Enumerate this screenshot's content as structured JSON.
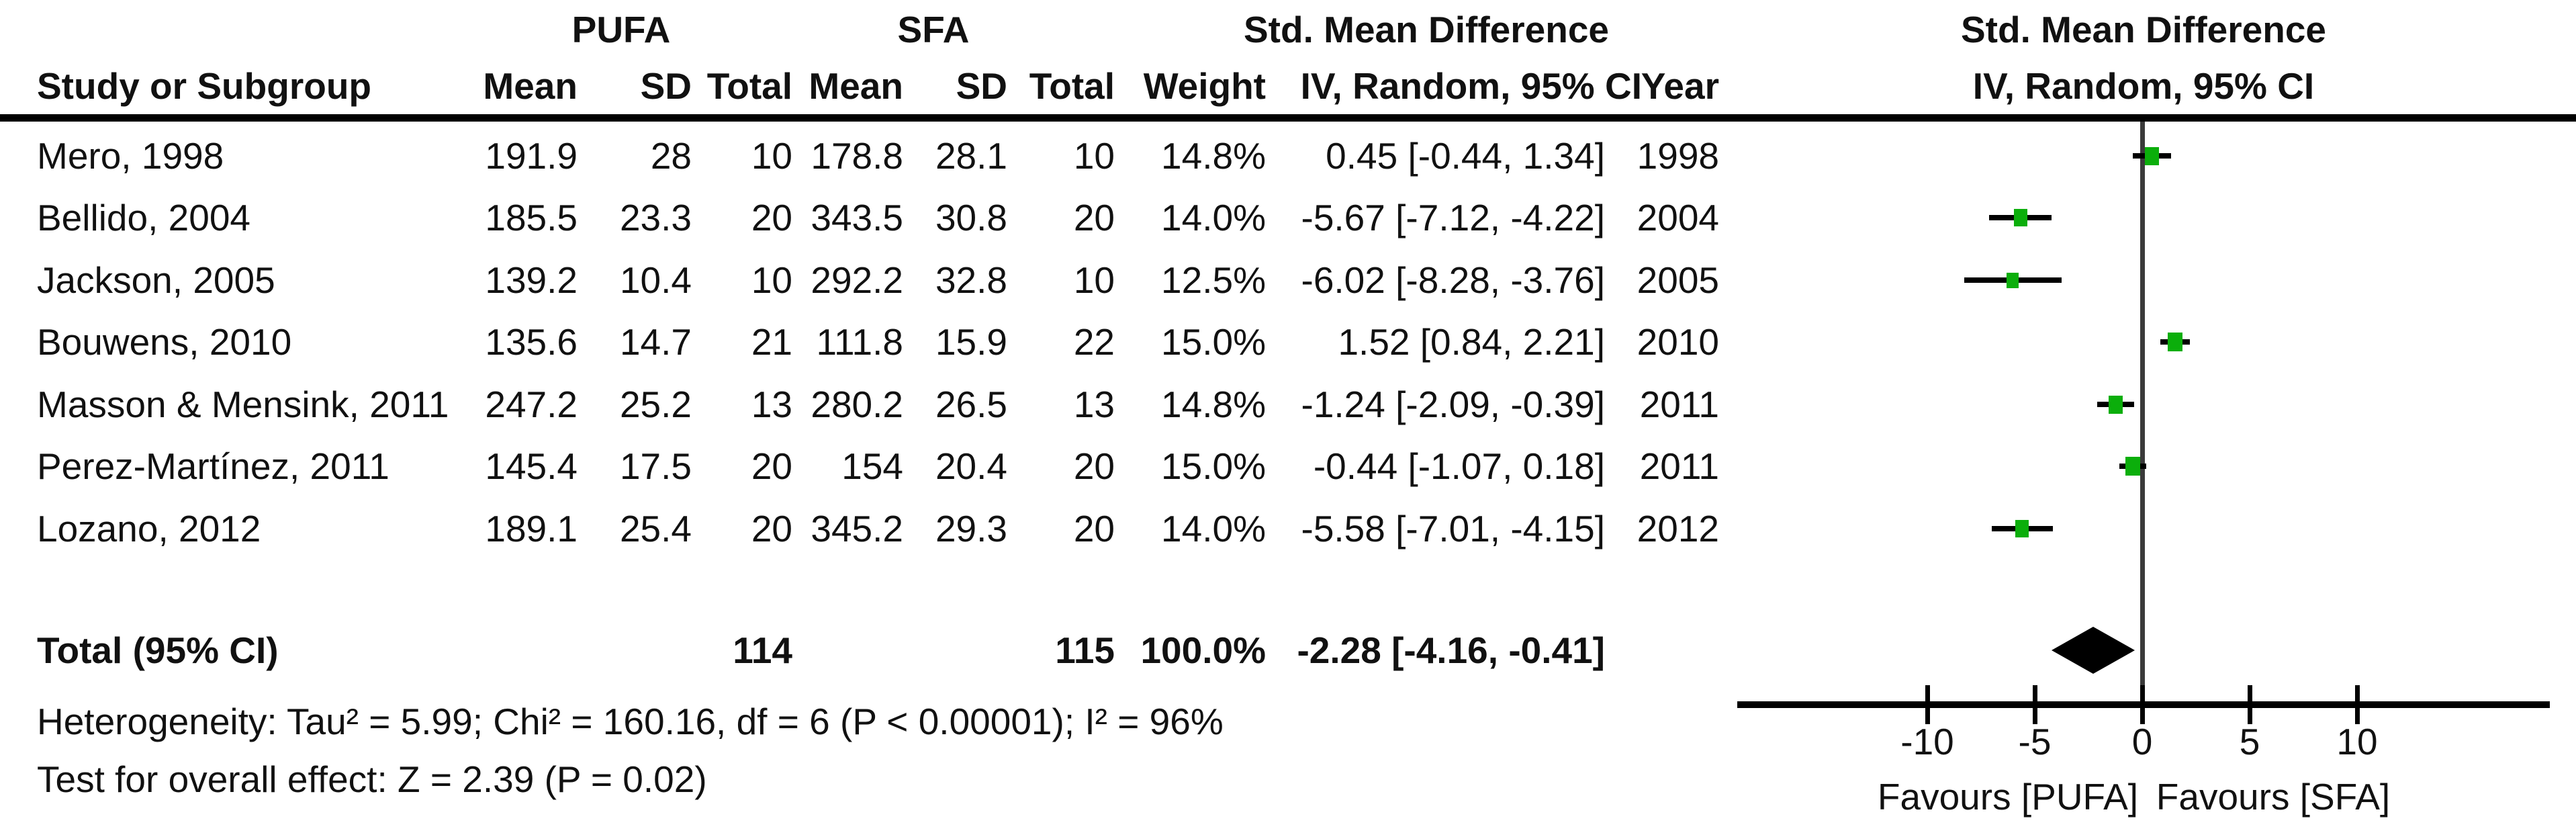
{
  "header": {
    "pufa_group": "PUFA",
    "sfa_group": "SFA",
    "smd_table_line1": "Std. Mean Difference",
    "smd_table_line2": "IV, Random, 95% CI",
    "smd_plot_line1": "Std. Mean Difference",
    "smd_plot_line2": "IV, Random, 95% CI",
    "study_col": "Study or Subgroup",
    "mean_col": "Mean",
    "sd_col": "SD",
    "total_col": "Total",
    "weight_col": "Weight",
    "year_col": "Year"
  },
  "studies": [
    {
      "name": "Mero, 1998",
      "pufa_mean": "191.9",
      "pufa_sd": "28",
      "pufa_total": "10",
      "sfa_mean": "178.8",
      "sfa_sd": "28.1",
      "sfa_total": "10",
      "weight": "14.8%",
      "ci_text": "0.45 [-0.44, 1.34]",
      "year": "1998",
      "smd": 0.45,
      "ci_low": -0.44,
      "ci_high": 1.34,
      "weight_pct": 14.8
    },
    {
      "name": "Bellido, 2004",
      "pufa_mean": "185.5",
      "pufa_sd": "23.3",
      "pufa_total": "20",
      "sfa_mean": "343.5",
      "sfa_sd": "30.8",
      "sfa_total": "20",
      "weight": "14.0%",
      "ci_text": "-5.67 [-7.12, -4.22]",
      "year": "2004",
      "smd": -5.67,
      "ci_low": -7.12,
      "ci_high": -4.22,
      "weight_pct": 14.0
    },
    {
      "name": "Jackson, 2005",
      "pufa_mean": "139.2",
      "pufa_sd": "10.4",
      "pufa_total": "10",
      "sfa_mean": "292.2",
      "sfa_sd": "32.8",
      "sfa_total": "10",
      "weight": "12.5%",
      "ci_text": "-6.02 [-8.28, -3.76]",
      "year": "2005",
      "smd": -6.02,
      "ci_low": -8.28,
      "ci_high": -3.76,
      "weight_pct": 12.5
    },
    {
      "name": "Bouwens, 2010",
      "pufa_mean": "135.6",
      "pufa_sd": "14.7",
      "pufa_total": "21",
      "sfa_mean": "111.8",
      "sfa_sd": "15.9",
      "sfa_total": "22",
      "weight": "15.0%",
      "ci_text": "1.52 [0.84, 2.21]",
      "year": "2010",
      "smd": 1.52,
      "ci_low": 0.84,
      "ci_high": 2.21,
      "weight_pct": 15.0
    },
    {
      "name": "Masson & Mensink, 2011",
      "pufa_mean": "247.2",
      "pufa_sd": "25.2",
      "pufa_total": "13",
      "sfa_mean": "280.2",
      "sfa_sd": "26.5",
      "sfa_total": "13",
      "weight": "14.8%",
      "ci_text": "-1.24 [-2.09, -0.39]",
      "year": "2011",
      "smd": -1.24,
      "ci_low": -2.09,
      "ci_high": -0.39,
      "weight_pct": 14.8
    },
    {
      "name": "Perez-Martínez, 2011",
      "pufa_mean": "145.4",
      "pufa_sd": "17.5",
      "pufa_total": "20",
      "sfa_mean": "154",
      "sfa_sd": "20.4",
      "sfa_total": "20",
      "weight": "15.0%",
      "ci_text": "-0.44 [-1.07, 0.18]",
      "year": "2011",
      "smd": -0.44,
      "ci_low": -1.07,
      "ci_high": 0.18,
      "weight_pct": 15.0
    },
    {
      "name": "Lozano, 2012",
      "pufa_mean": "189.1",
      "pufa_sd": "25.4",
      "pufa_total": "20",
      "sfa_mean": "345.2",
      "sfa_sd": "29.3",
      "sfa_total": "20",
      "weight": "14.0%",
      "ci_text": "-5.58 [-7.01, -4.15]",
      "year": "2012",
      "smd": -5.58,
      "ci_low": -7.01,
      "ci_high": -4.15,
      "weight_pct": 14.0
    }
  ],
  "total_row": {
    "label": "Total (95% CI)",
    "pufa_total": "114",
    "sfa_total": "115",
    "weight": "100.0%",
    "ci_text": "-2.28 [-4.16, -0.41]",
    "smd": -2.28,
    "ci_low": -4.16,
    "ci_high": -0.41
  },
  "footer": {
    "heterogeneity": "Heterogeneity: Tau² = 5.99; Chi² = 160.16, df = 6 (P < 0.00001); I² = 96%",
    "overall_effect": "Test for overall effect: Z = 2.39 (P = 0.02)"
  },
  "axis": {
    "ticks": [
      -10,
      -5,
      0,
      5,
      10
    ],
    "favours_left": "Favours [PUFA]",
    "favours_right": "Favours [SFA]"
  },
  "colors": {
    "marker_green": "#0BAE0B",
    "diamond_black": "#000000",
    "zero_line": "#3A3A3A",
    "line_black": "#000000"
  },
  "chart_data": {
    "type": "scatter",
    "subtype": "forest_plot",
    "title": "Std. Mean Difference",
    "effect_model": "IV, Random, 95% CI",
    "xlim": [
      -10,
      10
    ],
    "x_ticks": [
      -10,
      -5,
      0,
      5,
      10
    ],
    "xlabel_left": "Favours [PUFA]",
    "xlabel_right": "Favours [SFA]",
    "grid": false,
    "studies": [
      {
        "name": "Mero, 1998",
        "year": 1998,
        "pufa": {
          "mean": 191.9,
          "sd": 28,
          "total": 10
        },
        "sfa": {
          "mean": 178.8,
          "sd": 28.1,
          "total": 10
        },
        "weight_pct": 14.8,
        "smd": 0.45,
        "ci": [
          -0.44,
          1.34
        ]
      },
      {
        "name": "Bellido, 2004",
        "year": 2004,
        "pufa": {
          "mean": 185.5,
          "sd": 23.3,
          "total": 20
        },
        "sfa": {
          "mean": 343.5,
          "sd": 30.8,
          "total": 20
        },
        "weight_pct": 14.0,
        "smd": -5.67,
        "ci": [
          -7.12,
          -4.22
        ]
      },
      {
        "name": "Jackson, 2005",
        "year": 2005,
        "pufa": {
          "mean": 139.2,
          "sd": 10.4,
          "total": 10
        },
        "sfa": {
          "mean": 292.2,
          "sd": 32.8,
          "total": 10
        },
        "weight_pct": 12.5,
        "smd": -6.02,
        "ci": [
          -8.28,
          -3.76
        ]
      },
      {
        "name": "Bouwens, 2010",
        "year": 2010,
        "pufa": {
          "mean": 135.6,
          "sd": 14.7,
          "total": 21
        },
        "sfa": {
          "mean": 111.8,
          "sd": 15.9,
          "total": 22
        },
        "weight_pct": 15.0,
        "smd": 1.52,
        "ci": [
          0.84,
          2.21
        ]
      },
      {
        "name": "Masson & Mensink, 2011",
        "year": 2011,
        "pufa": {
          "mean": 247.2,
          "sd": 25.2,
          "total": 13
        },
        "sfa": {
          "mean": 280.2,
          "sd": 26.5,
          "total": 13
        },
        "weight_pct": 14.8,
        "smd": -1.24,
        "ci": [
          -2.09,
          -0.39
        ]
      },
      {
        "name": "Perez-Martínez, 2011",
        "year": 2011,
        "pufa": {
          "mean": 145.4,
          "sd": 17.5,
          "total": 20
        },
        "sfa": {
          "mean": 154,
          "sd": 20.4,
          "total": 20
        },
        "weight_pct": 15.0,
        "smd": -0.44,
        "ci": [
          -1.07,
          0.18
        ]
      },
      {
        "name": "Lozano, 2012",
        "year": 2012,
        "pufa": {
          "mean": 189.1,
          "sd": 25.4,
          "total": 20
        },
        "sfa": {
          "mean": 345.2,
          "sd": 29.3,
          "total": 20
        },
        "weight_pct": 14.0,
        "smd": -5.58,
        "ci": [
          -7.01,
          -4.15
        ]
      }
    ],
    "total": {
      "label": "Total (95% CI)",
      "pufa_total": 114,
      "sfa_total": 115,
      "weight_pct": 100.0,
      "smd": -2.28,
      "ci": [
        -4.16,
        -0.41
      ]
    },
    "heterogeneity": {
      "tau2": 5.99,
      "chi2": 160.16,
      "df": 6,
      "p": "< 0.00001",
      "i2_pct": 96
    },
    "overall_effect": {
      "z": 2.39,
      "p": 0.02
    }
  }
}
